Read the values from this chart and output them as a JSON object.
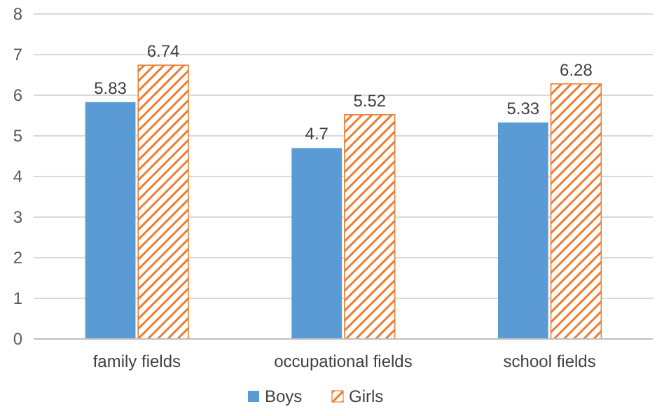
{
  "chart_data": {
    "type": "bar",
    "categories": [
      "family fields",
      "occupational fields",
      "school fields"
    ],
    "series": [
      {
        "name": "Boys",
        "color": "#5b9bd5",
        "values": [
          5.83,
          4.7,
          5.33
        ]
      },
      {
        "name": "Girls",
        "color": "#ed7d31",
        "values": [
          6.74,
          5.52,
          6.28
        ]
      }
    ],
    "ylim": [
      0,
      8
    ],
    "yticks": [
      0,
      1,
      2,
      3,
      4,
      5,
      6,
      7,
      8
    ],
    "grid": "y",
    "legend": "bottom",
    "data_labels": true
  }
}
